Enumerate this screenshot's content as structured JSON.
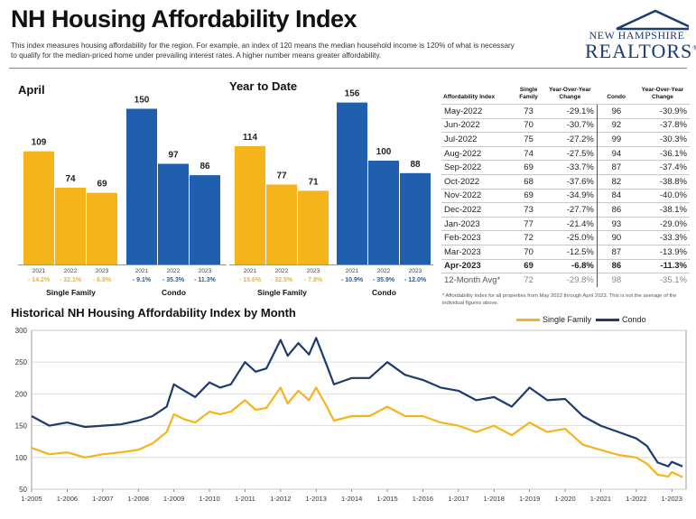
{
  "header": {
    "title": "NH Housing Affordability Index",
    "subtitle": "This index measures housing affordability for the region. For example, an index of 120 means the median household income is 120% of what is necessary to qualify for the median-priced home under prevailing interest rates. A higher number means greater affordability.",
    "logo_line1": "NEW HAMPSHIRE",
    "logo_line2": "REALTORS",
    "logo_mark": "®"
  },
  "colors": {
    "single_family": "#f5b41a",
    "condo": "#1f5fae",
    "condo_line": "#1c3b6e"
  },
  "bar_panels": {
    "april_title": "April",
    "ytd_title": "Year to Date"
  },
  "table": {
    "headers": [
      "Affordability Index",
      "Single Family",
      "Year-Over-Year Change",
      "Condo",
      "Year-Over-Year Change"
    ],
    "rows": [
      [
        "May-2022",
        "73",
        "-29.1%",
        "96",
        "-30.9%"
      ],
      [
        "Jun-2022",
        "70",
        "-30.7%",
        "92",
        "-37.8%"
      ],
      [
        "Jul-2022",
        "75",
        "-27.2%",
        "99",
        "-30.3%"
      ],
      [
        "Aug-2022",
        "74",
        "-27.5%",
        "94",
        "-36.1%"
      ],
      [
        "Sep-2022",
        "69",
        "-33.7%",
        "87",
        "-37.4%"
      ],
      [
        "Oct-2022",
        "68",
        "-37.6%",
        "82",
        "-38.8%"
      ],
      [
        "Nov-2022",
        "69",
        "-34.9%",
        "84",
        "-40.0%"
      ],
      [
        "Dec-2022",
        "73",
        "-27.7%",
        "86",
        "-38.1%"
      ],
      [
        "Jan-2023",
        "77",
        "-21.4%",
        "93",
        "-29.0%"
      ],
      [
        "Feb-2023",
        "72",
        "-25.0%",
        "90",
        "-33.3%"
      ],
      [
        "Mar-2023",
        "70",
        "-12.5%",
        "87",
        "-13.9%"
      ],
      [
        "Apr-2023",
        "69",
        "-6.8%",
        "86",
        "-11.3%"
      ]
    ],
    "avg_row": [
      "12-Month Avg*",
      "72",
      "-29.8%",
      "98",
      "-35.1%"
    ],
    "footnote": "* Affordability Index for all properties from May 2022 through April 2023. This is not the average of the individual figures above."
  },
  "chart_data": [
    {
      "type": "bar",
      "panel": "April",
      "groups": [
        {
          "name": "Single Family",
          "color": "#f5b41a",
          "categories": [
            "2021",
            "2022",
            "2023"
          ],
          "values": [
            109,
            74,
            69
          ],
          "changes": [
            "- 14.2%",
            "- 32.1%",
            "- 6.8%"
          ]
        },
        {
          "name": "Condo",
          "color": "#1f5fae",
          "categories": [
            "2021",
            "2022",
            "2023"
          ],
          "values": [
            150,
            97,
            86
          ],
          "changes": [
            "- 9.1%",
            "- 35.3%",
            "- 11.3%"
          ]
        }
      ],
      "ylim": [
        0,
        160
      ]
    },
    {
      "type": "bar",
      "panel": "Year to Date",
      "groups": [
        {
          "name": "Single Family",
          "color": "#f5b41a",
          "categories": [
            "2021",
            "2022",
            "2023"
          ],
          "values": [
            114,
            77,
            71
          ],
          "changes": [
            "- 15.6%",
            "- 32.5%",
            "- 7.8%"
          ]
        },
        {
          "name": "Condo",
          "color": "#1f5fae",
          "categories": [
            "2021",
            "2022",
            "2023"
          ],
          "values": [
            156,
            100,
            88
          ],
          "changes": [
            "- 10.9%",
            "- 35.9%",
            "- 12.0%"
          ]
        }
      ],
      "ylim": [
        0,
        160
      ]
    },
    {
      "type": "line",
      "title": "Historical NH Housing Affordability Index by Month",
      "ylim": [
        50,
        300
      ],
      "yticks": [
        50,
        100,
        150,
        200,
        250,
        300
      ],
      "xticks": [
        "1-2005",
        "1-2006",
        "1-2007",
        "1-2008",
        "1-2009",
        "1-2010",
        "1-2011",
        "1-2012",
        "1-2013",
        "1-2014",
        "1-2015",
        "1-2016",
        "1-2017",
        "1-2018",
        "1-2019",
        "1-2020",
        "1-2021",
        "1-2022",
        "1-2023"
      ],
      "x_range": [
        2005.0,
        2023.4
      ],
      "grid": true,
      "legend": "top-right",
      "series": [
        {
          "name": "Single Family",
          "color": "#f5b41a",
          "x": [
            2005.0,
            2005.5,
            2006.0,
            2006.5,
            2007.0,
            2007.5,
            2008.0,
            2008.4,
            2008.8,
            2009.0,
            2009.3,
            2009.6,
            2010.0,
            2010.3,
            2010.6,
            2011.0,
            2011.3,
            2011.6,
            2012.0,
            2012.2,
            2012.5,
            2012.8,
            2013.0,
            2013.3,
            2013.5,
            2014.0,
            2014.5,
            2015.0,
            2015.5,
            2016.0,
            2016.5,
            2017.0,
            2017.5,
            2018.0,
            2018.5,
            2019.0,
            2019.5,
            2020.0,
            2020.5,
            2021.0,
            2021.5,
            2022.0,
            2022.3,
            2022.6,
            2022.9,
            2023.0,
            2023.3
          ],
          "y": [
            115,
            105,
            108,
            100,
            105,
            108,
            112,
            122,
            140,
            168,
            160,
            155,
            172,
            168,
            172,
            190,
            175,
            178,
            210,
            185,
            205,
            190,
            210,
            180,
            158,
            165,
            165,
            180,
            165,
            165,
            155,
            150,
            140,
            150,
            135,
            155,
            140,
            145,
            120,
            112,
            104,
            100,
            90,
            73,
            70,
            77,
            69
          ]
        },
        {
          "name": "Condo",
          "color": "#1c3b6e",
          "x": [
            2005.0,
            2005.5,
            2006.0,
            2006.5,
            2007.0,
            2007.5,
            2008.0,
            2008.4,
            2008.8,
            2009.0,
            2009.3,
            2009.6,
            2010.0,
            2010.3,
            2010.6,
            2011.0,
            2011.3,
            2011.6,
            2012.0,
            2012.2,
            2012.5,
            2012.8,
            2013.0,
            2013.3,
            2013.5,
            2014.0,
            2014.5,
            2015.0,
            2015.5,
            2016.0,
            2016.5,
            2017.0,
            2017.5,
            2018.0,
            2018.5,
            2019.0,
            2019.5,
            2020.0,
            2020.5,
            2021.0,
            2021.5,
            2022.0,
            2022.3,
            2022.6,
            2022.9,
            2023.0,
            2023.3
          ],
          "y": [
            165,
            150,
            155,
            148,
            150,
            152,
            158,
            165,
            180,
            215,
            205,
            195,
            218,
            210,
            215,
            250,
            235,
            240,
            285,
            260,
            280,
            262,
            288,
            245,
            215,
            225,
            225,
            250,
            230,
            222,
            210,
            205,
            190,
            195,
            180,
            210,
            190,
            192,
            165,
            150,
            140,
            130,
            118,
            92,
            86,
            93,
            86
          ]
        }
      ]
    }
  ]
}
